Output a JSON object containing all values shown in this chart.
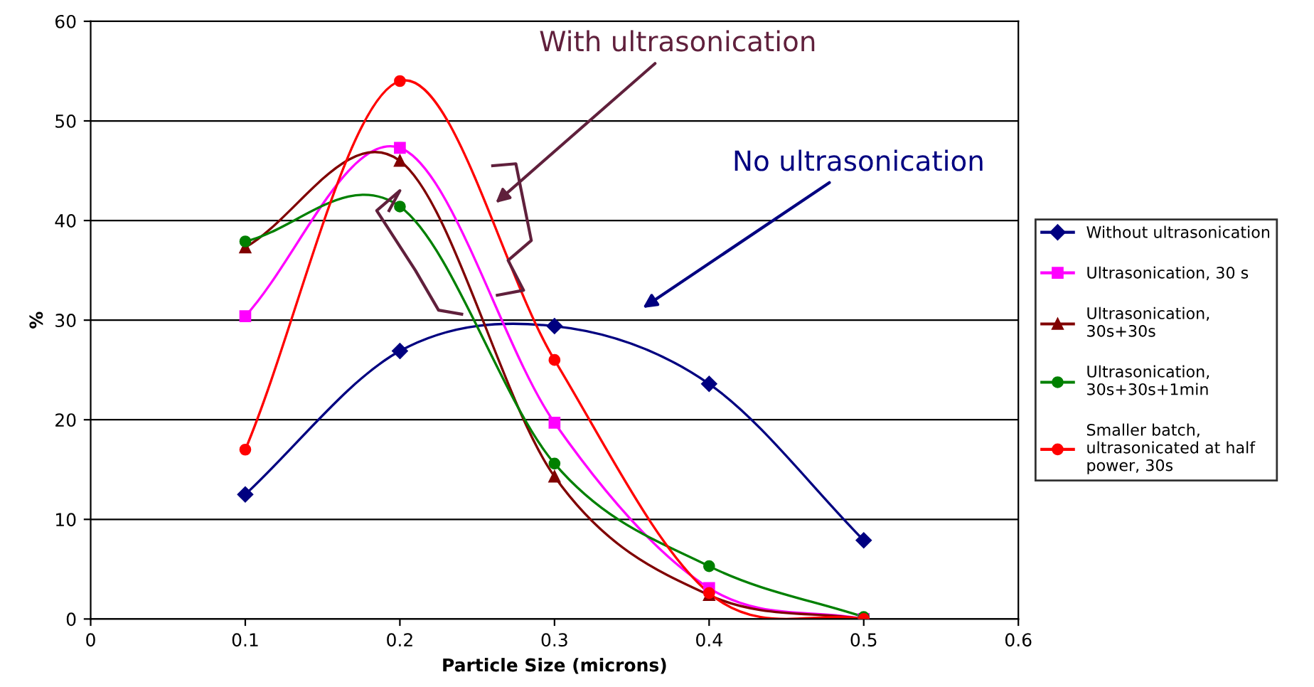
{
  "chart_data": {
    "type": "line",
    "xlabel": "Particle Size (microns)",
    "ylabel": "%",
    "x": [
      0.1,
      0.2,
      0.3,
      0.4,
      0.5
    ],
    "xlim": [
      0,
      0.6
    ],
    "xticks": [
      0,
      0.1,
      0.2,
      0.3,
      0.4,
      0.5,
      0.6
    ],
    "ylim": [
      0,
      60
    ],
    "yticks": [
      0,
      10,
      20,
      30,
      40,
      50,
      60
    ],
    "grid": "y",
    "legend": "right",
    "line_style": "solid",
    "annotations": [
      "With ultrasonication",
      "No ultrasonication"
    ],
    "series": [
      {
        "name": "Without ultrasonication",
        "color": "#000080",
        "marker": "diamond",
        "values": [
          12.5,
          26.9,
          29.4,
          23.6,
          7.9
        ]
      },
      {
        "name": "Ultrasonication, 30 s",
        "color": "#ff00ff",
        "marker": "square",
        "values": [
          30.4,
          47.3,
          19.7,
          3.1,
          0
        ]
      },
      {
        "name": "Ultrasonication,\n30s+30s",
        "color": "#800000",
        "marker": "triangle",
        "values": [
          37.3,
          46,
          14.3,
          2.4,
          0
        ]
      },
      {
        "name": "Ultrasonication,\n30s+30s+1min",
        "color": "#008000",
        "marker": "circle",
        "values": [
          37.9,
          41.4,
          15.6,
          5.3,
          0.2
        ]
      },
      {
        "name": "Smaller batch,\nultrasonicated at half\npower, 30s",
        "color": "#ff0000",
        "marker": "circle",
        "values": [
          17,
          54,
          26,
          2.6,
          0
        ]
      }
    ]
  }
}
